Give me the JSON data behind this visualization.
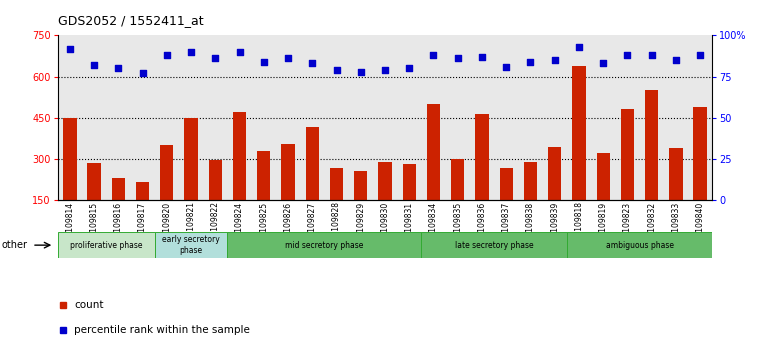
{
  "title": "GDS2052 / 1552411_at",
  "samples": [
    "GSM109814",
    "GSM109815",
    "GSM109816",
    "GSM109817",
    "GSM109820",
    "GSM109821",
    "GSM109822",
    "GSM109824",
    "GSM109825",
    "GSM109826",
    "GSM109827",
    "GSM109828",
    "GSM109829",
    "GSM109830",
    "GSM109831",
    "GSM109834",
    "GSM109835",
    "GSM109836",
    "GSM109837",
    "GSM109838",
    "GSM109839",
    "GSM109818",
    "GSM109819",
    "GSM109823",
    "GSM109832",
    "GSM109833",
    "GSM109840"
  ],
  "counts": [
    450,
    285,
    230,
    215,
    350,
    450,
    295,
    470,
    330,
    355,
    415,
    265,
    255,
    290,
    280,
    500,
    300,
    465,
    265,
    290,
    345,
    640,
    320,
    480,
    550,
    340,
    490
  ],
  "percentile": [
    92,
    82,
    80,
    77,
    88,
    90,
    86,
    90,
    84,
    86,
    83,
    79,
    78,
    79,
    80,
    88,
    86,
    87,
    81,
    84,
    85,
    93,
    83,
    88,
    88,
    85,
    88
  ],
  "phases": [
    {
      "name": "proliferative phase",
      "start": 0,
      "end": 4,
      "color": "#c8e6c9"
    },
    {
      "name": "early secretory\nphase",
      "start": 4,
      "end": 7,
      "color": "#b2dfdb"
    },
    {
      "name": "mid secretory phase",
      "start": 7,
      "end": 15,
      "color": "#66bb6a"
    },
    {
      "name": "late secretory phase",
      "start": 15,
      "end": 21,
      "color": "#66bb6a"
    },
    {
      "name": "ambiguous phase",
      "start": 21,
      "end": 27,
      "color": "#66bb6a"
    }
  ],
  "bar_color": "#cc2200",
  "dot_color": "#0000cc",
  "ylim_left": [
    150,
    750
  ],
  "ylim_right": [
    0,
    100
  ],
  "yticks_left": [
    150,
    300,
    450,
    600,
    750
  ],
  "yticks_right": [
    0,
    25,
    50,
    75,
    100
  ],
  "grid_levels": [
    300,
    450,
    600
  ],
  "plot_bg_color": "#e8e8e8",
  "border_color": "#33aa33"
}
